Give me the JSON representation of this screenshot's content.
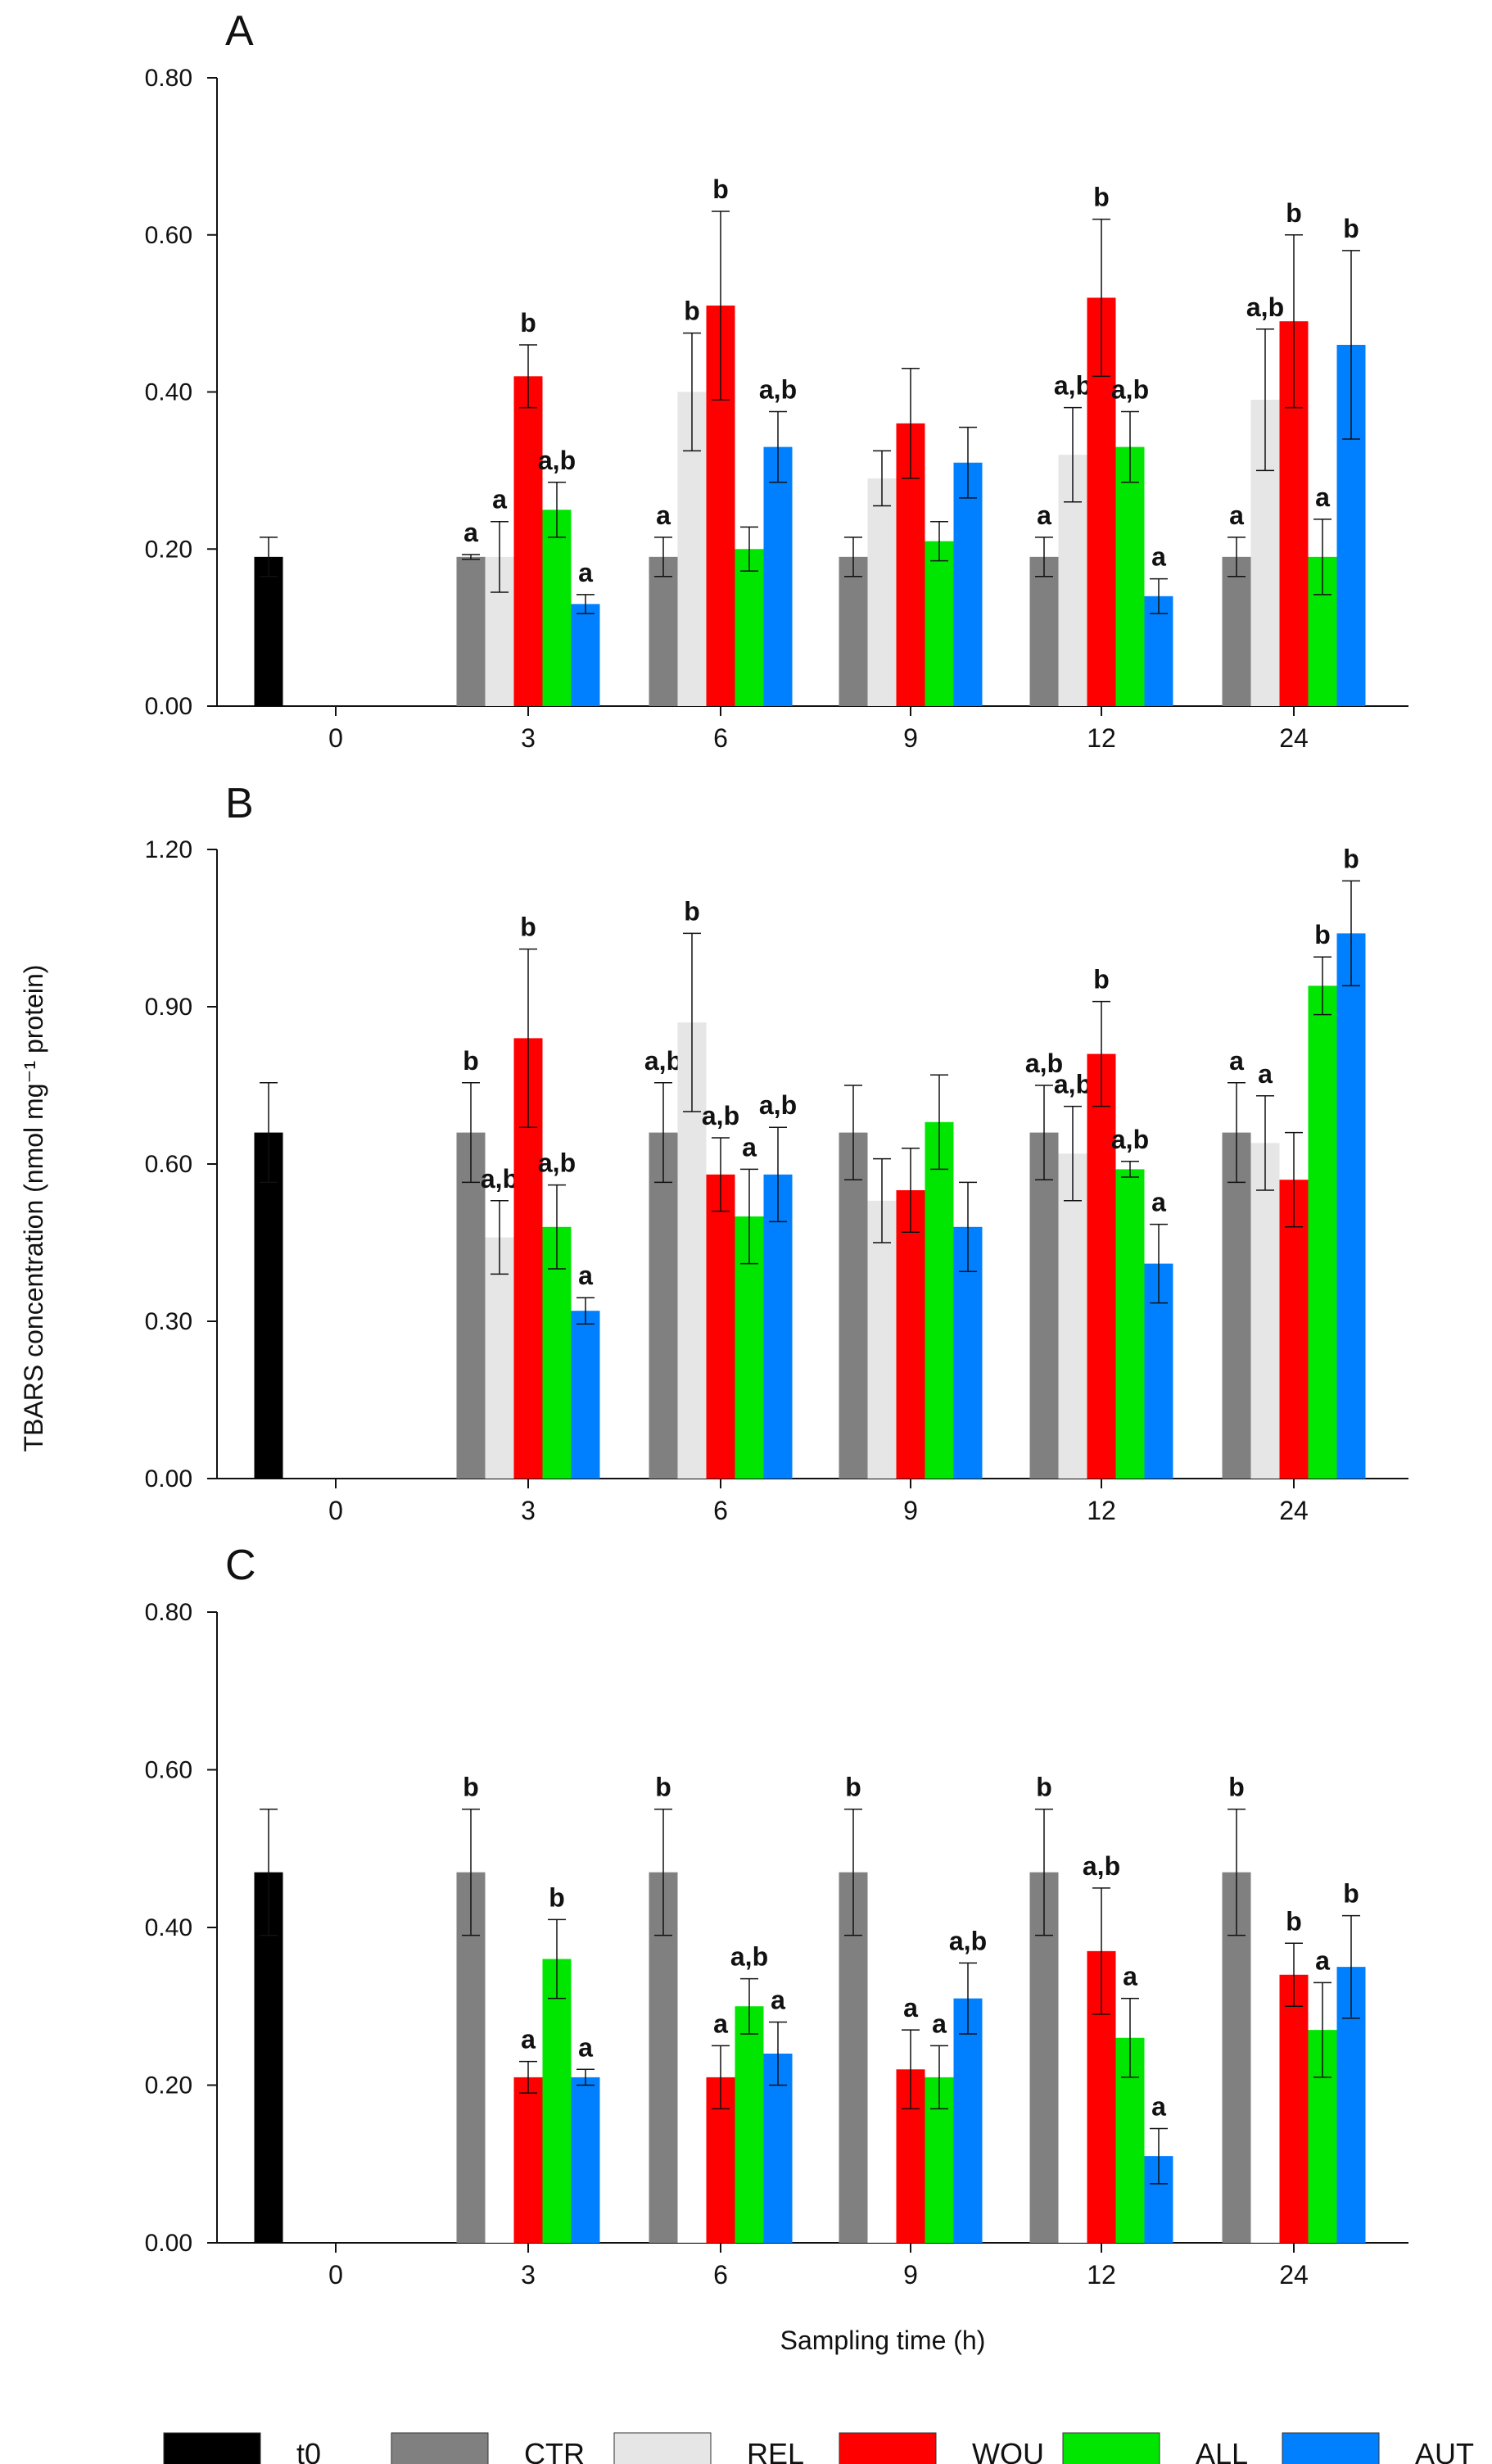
{
  "figure": {
    "ylabel": "TBARS concentration (nmol mg⁻¹ protein)",
    "xlabel": "Sampling time (h)"
  },
  "colors": {
    "t0": "#000000",
    "CTR": "#808080",
    "REL": "#e6e6e6",
    "WOU": "#ff0000",
    "ALL": "#00e600",
    "AUT": "#0080ff"
  },
  "legend": [
    {
      "key": "t0",
      "label": "t0"
    },
    {
      "key": "CTR",
      "label": "CTR"
    },
    {
      "key": "REL",
      "label": "REL"
    },
    {
      "key": "WOU",
      "label": "WOU"
    },
    {
      "key": "ALL",
      "label": "ALL"
    },
    {
      "key": "AUT",
      "label": "AUT"
    }
  ],
  "chart_data": [
    {
      "type": "bar",
      "panel": "A",
      "categories": [
        "0",
        "3",
        "6",
        "9",
        "12",
        "24"
      ],
      "ylim": [
        0,
        0.8
      ],
      "yticks": [
        "0.00",
        "0.20",
        "0.40",
        "0.60",
        "0.80"
      ],
      "legend_position": "bottom",
      "series": [
        {
          "name": "t0",
          "key": "t0",
          "values": [
            0.19,
            null,
            null,
            null,
            null,
            null
          ],
          "errors": [
            0.025,
            null,
            null,
            null,
            null,
            null
          ],
          "labels": [
            null,
            null,
            null,
            null,
            null,
            null
          ]
        },
        {
          "name": "CTR",
          "key": "CTR",
          "values": [
            null,
            0.19,
            0.19,
            0.19,
            0.19,
            0.19
          ],
          "errors": [
            null,
            0.003,
            0.025,
            0.025,
            0.025,
            0.025
          ],
          "labels": [
            null,
            "a",
            "a",
            null,
            "a",
            "a"
          ]
        },
        {
          "name": "REL",
          "key": "REL",
          "values": [
            null,
            0.19,
            0.4,
            0.29,
            0.32,
            0.39
          ],
          "errors": [
            null,
            0.045,
            0.075,
            0.035,
            0.06,
            0.09
          ],
          "labels": [
            null,
            "a",
            "b",
            null,
            "a,b",
            "a,b"
          ]
        },
        {
          "name": "WOU",
          "key": "WOU",
          "values": [
            null,
            0.42,
            0.51,
            0.36,
            0.52,
            0.49
          ],
          "errors": [
            null,
            0.04,
            0.12,
            0.07,
            0.1,
            0.11
          ],
          "labels": [
            null,
            "b",
            "b",
            null,
            "b",
            "b"
          ]
        },
        {
          "name": "ALL",
          "key": "ALL",
          "values": [
            null,
            0.25,
            0.2,
            0.21,
            0.33,
            0.19
          ],
          "errors": [
            null,
            0.035,
            0.028,
            0.025,
            0.045,
            0.048
          ],
          "labels": [
            null,
            "a,b",
            null,
            null,
            "a,b",
            "a"
          ]
        },
        {
          "name": "AUT",
          "key": "AUT",
          "values": [
            null,
            0.13,
            0.33,
            0.31,
            0.14,
            0.46
          ],
          "errors": [
            null,
            0.012,
            0.045,
            0.045,
            0.022,
            0.12
          ],
          "labels": [
            null,
            "a",
            "a,b",
            null,
            "a",
            "b"
          ]
        }
      ]
    },
    {
      "type": "bar",
      "panel": "B",
      "categories": [
        "0",
        "3",
        "6",
        "9",
        "12",
        "24"
      ],
      "ylim": [
        0,
        1.2
      ],
      "yticks": [
        "0.00",
        "0.30",
        "0.60",
        "0.90",
        "1.20"
      ],
      "legend_position": "bottom",
      "series": [
        {
          "name": "t0",
          "key": "t0",
          "values": [
            0.66,
            null,
            null,
            null,
            null,
            null
          ],
          "errors": [
            0.095,
            null,
            null,
            null,
            null,
            null
          ],
          "labels": [
            null,
            null,
            null,
            null,
            null,
            null
          ]
        },
        {
          "name": "CTR",
          "key": "CTR",
          "values": [
            null,
            0.66,
            0.66,
            0.66,
            0.66,
            0.66
          ],
          "errors": [
            null,
            0.095,
            0.095,
            0.09,
            0.09,
            0.095
          ],
          "labels": [
            null,
            "b",
            "a,b",
            null,
            "a,b",
            "a"
          ]
        },
        {
          "name": "REL",
          "key": "REL",
          "values": [
            null,
            0.46,
            0.87,
            0.53,
            0.62,
            0.64
          ],
          "errors": [
            null,
            0.07,
            0.17,
            0.08,
            0.09,
            0.09
          ],
          "labels": [
            null,
            "a,b",
            "b",
            null,
            "a,b",
            "a"
          ]
        },
        {
          "name": "WOU",
          "key": "WOU",
          "values": [
            null,
            0.84,
            0.58,
            0.55,
            0.81,
            0.57
          ],
          "errors": [
            null,
            0.17,
            0.07,
            0.08,
            0.1,
            0.09
          ],
          "labels": [
            null,
            "b",
            "a,b",
            null,
            "b",
            null
          ]
        },
        {
          "name": "ALL",
          "key": "ALL",
          "values": [
            null,
            0.48,
            0.5,
            0.68,
            0.59,
            0.94
          ],
          "errors": [
            null,
            0.08,
            0.09,
            0.09,
            0.015,
            0.055
          ],
          "labels": [
            null,
            "a,b",
            "a",
            null,
            "a,b",
            "b"
          ]
        },
        {
          "name": "AUT",
          "key": "AUT",
          "values": [
            null,
            0.32,
            0.58,
            0.48,
            0.41,
            1.04
          ],
          "errors": [
            null,
            0.025,
            0.09,
            0.085,
            0.075,
            0.1
          ],
          "labels": [
            null,
            "a",
            "a,b",
            null,
            "a",
            "b"
          ]
        }
      ]
    },
    {
      "type": "bar",
      "panel": "C",
      "categories": [
        "0",
        "3",
        "6",
        "9",
        "12",
        "24"
      ],
      "ylim": [
        0,
        0.8
      ],
      "yticks": [
        "0.00",
        "0.20",
        "0.40",
        "0.60",
        "0.80"
      ],
      "legend_position": "bottom",
      "series": [
        {
          "name": "t0",
          "key": "t0",
          "values": [
            0.47,
            null,
            null,
            null,
            null,
            null
          ],
          "errors": [
            0.08,
            null,
            null,
            null,
            null,
            null
          ],
          "labels": [
            null,
            null,
            null,
            null,
            null,
            null
          ]
        },
        {
          "name": "CTR",
          "key": "CTR",
          "values": [
            null,
            0.47,
            0.47,
            0.47,
            0.47,
            0.47
          ],
          "errors": [
            null,
            0.08,
            0.08,
            0.08,
            0.08,
            0.08
          ],
          "labels": [
            null,
            "b",
            "b",
            "b",
            "b",
            "b"
          ]
        },
        {
          "name": "REL",
          "key": "REL",
          "values": [
            null,
            0,
            0,
            0,
            0,
            0
          ],
          "errors": [
            null,
            null,
            null,
            null,
            null,
            null
          ],
          "labels": [
            null,
            null,
            null,
            null,
            null,
            null
          ]
        },
        {
          "name": "WOU",
          "key": "WOU",
          "values": [
            null,
            0.21,
            0.21,
            0.22,
            0.37,
            0.34
          ],
          "errors": [
            null,
            0.02,
            0.04,
            0.05,
            0.08,
            0.04
          ],
          "labels": [
            null,
            "a",
            "a",
            "a",
            "a,b",
            "b"
          ]
        },
        {
          "name": "ALL",
          "key": "ALL",
          "values": [
            null,
            0.36,
            0.3,
            0.21,
            0.26,
            0.27
          ],
          "errors": [
            null,
            0.05,
            0.035,
            0.04,
            0.05,
            0.06
          ],
          "labels": [
            null,
            "b",
            "a,b",
            "a",
            "a",
            "a"
          ]
        },
        {
          "name": "AUT",
          "key": "AUT",
          "values": [
            null,
            0.21,
            0.24,
            0.31,
            0.11,
            0.35
          ],
          "errors": [
            null,
            0.01,
            0.04,
            0.045,
            0.035,
            0.065
          ],
          "labels": [
            null,
            "a",
            "a",
            "a,b",
            "a",
            "b"
          ]
        }
      ]
    }
  ]
}
